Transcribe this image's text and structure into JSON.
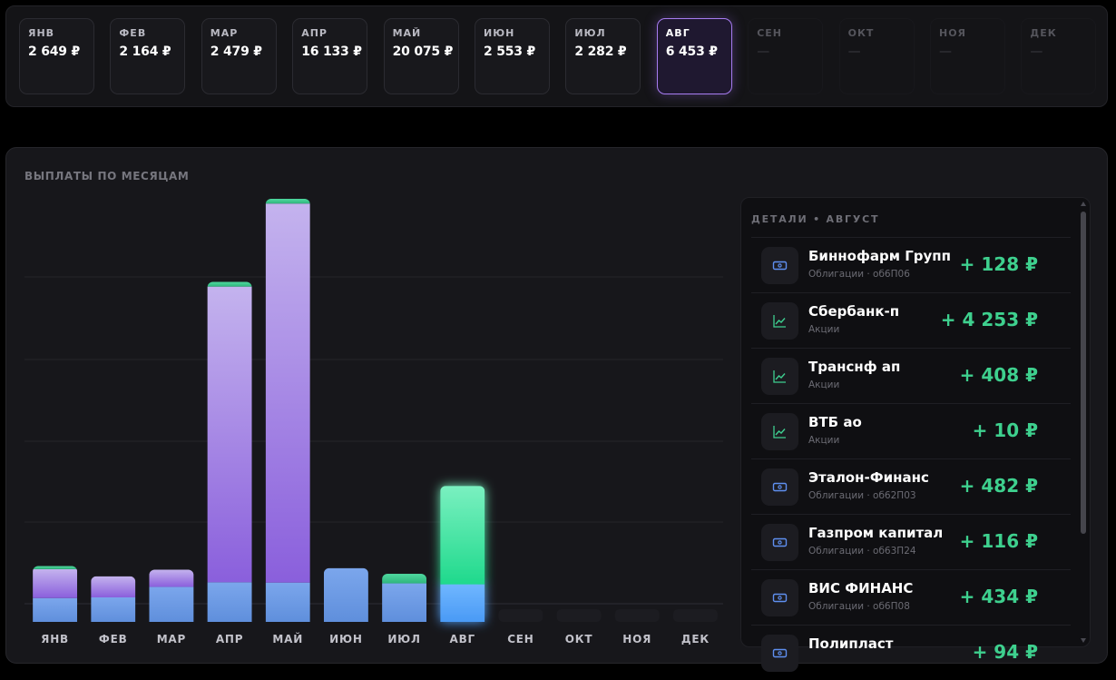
{
  "months": [
    {
      "label": "ЯНВ",
      "value": "2 649 ₽",
      "state": "filled"
    },
    {
      "label": "ФЕВ",
      "value": "2 164 ₽",
      "state": "filled"
    },
    {
      "label": "МАР",
      "value": "2 479 ₽",
      "state": "filled"
    },
    {
      "label": "АПР",
      "value": "16 133 ₽",
      "state": "filled"
    },
    {
      "label": "МАЙ",
      "value": "20 075 ₽",
      "state": "filled"
    },
    {
      "label": "ИЮН",
      "value": "2 553 ₽",
      "state": "filled"
    },
    {
      "label": "ИЮЛ",
      "value": "2 282 ₽",
      "state": "filled"
    },
    {
      "label": "АВГ",
      "value": "6 453 ₽",
      "state": "active"
    },
    {
      "label": "СЕН",
      "value": "—",
      "state": "empty"
    },
    {
      "label": "ОКТ",
      "value": "—",
      "state": "empty"
    },
    {
      "label": "НОЯ",
      "value": "—",
      "state": "empty"
    },
    {
      "label": "ДЕК",
      "value": "—",
      "state": "empty"
    }
  ],
  "chart_title": "ВЫПЛАТЫ ПО МЕСЯЦАМ",
  "chart_data": {
    "type": "bar",
    "stacked": true,
    "categories": [
      "ЯНВ",
      "ФЕВ",
      "МАР",
      "АПР",
      "МАЙ",
      "ИЮН",
      "ИЮЛ",
      "АВГ",
      "СЕН",
      "ОКТ",
      "НОЯ",
      "ДЕК"
    ],
    "totals": [
      2649,
      2164,
      2479,
      16133,
      20075,
      2553,
      2282,
      6453,
      0,
      0,
      0,
      0
    ],
    "segments": [
      [
        1131,
        1371,
        147
      ],
      [
        1163,
        1001,
        0
      ],
      [
        1661,
        818,
        0
      ],
      [
        1880,
        14031,
        222
      ],
      [
        1866,
        17984,
        225
      ],
      [
        2553,
        0,
        0
      ],
      [
        1829,
        0,
        453
      ],
      [
        1783,
        0,
        4670
      ],
      [
        0,
        0,
        0
      ],
      [
        0,
        0,
        0
      ],
      [
        0,
        0,
        0
      ],
      [
        0,
        0,
        0
      ]
    ],
    "segment_colors": {
      "base": "#6f9fe6",
      "main": "#9f7fe6",
      "cap": "#3ecf90"
    },
    "active_colors": {
      "base": "#5aa6ff",
      "main": "#3ae39c"
    },
    "active_index": 7,
    "ylim": [
      0,
      20075
    ],
    "grid": true,
    "gridlines": 5,
    "xlabel": "",
    "ylabel": ""
  },
  "details": {
    "title": "ДЕТАЛИ • АВГУСТ",
    "items": [
      {
        "name": "Биннофарм Групп",
        "sub": "Облигации · об6П06",
        "amount": "+ 128 ₽",
        "icon": "bond"
      },
      {
        "name": "Сбербанк-п",
        "sub": "Акции",
        "amount": "+ 4 253 ₽",
        "icon": "stock"
      },
      {
        "name": "Транснф ап",
        "sub": "Акции",
        "amount": "+ 408 ₽",
        "icon": "stock"
      },
      {
        "name": "ВТБ ао",
        "sub": "Акции",
        "amount": "+ 10 ₽",
        "icon": "stock"
      },
      {
        "name": "Эталон-Финанс",
        "sub": "Облигации · об62П03",
        "amount": "+ 482 ₽",
        "icon": "bond"
      },
      {
        "name": "Газпром капитал",
        "sub": "Облигации · об63П24",
        "amount": "+ 116 ₽",
        "icon": "bond"
      },
      {
        "name": "ВИС ФИНАНС",
        "sub": "Облигации · об6П08",
        "amount": "+ 434 ₽",
        "icon": "bond"
      },
      {
        "name": "Полипласт",
        "sub": "",
        "amount": "+ 94 ₽",
        "icon": "bond"
      }
    ]
  }
}
